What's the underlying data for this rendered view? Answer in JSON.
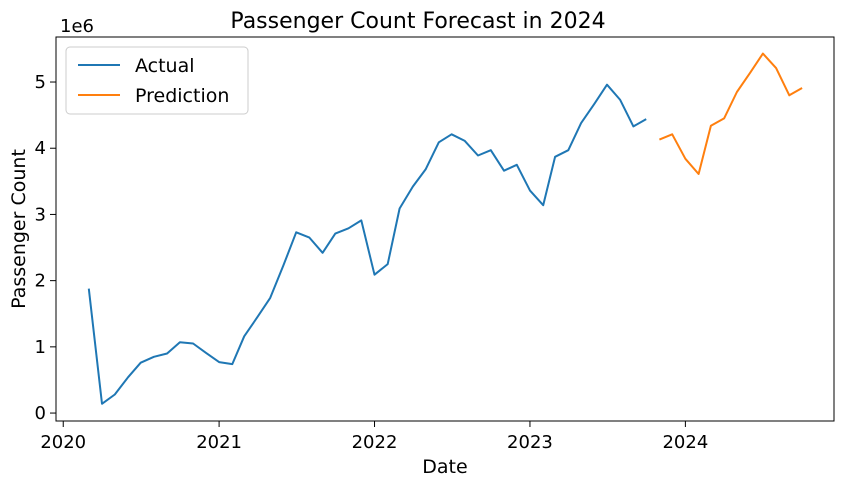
{
  "chart_data": {
    "type": "line",
    "title": "Passenger Count Forecast in 2024",
    "xlabel": "Date",
    "ylabel": "Passenger Count",
    "y_multiplier_label": "1e6",
    "xlim": [
      "2019-12-15",
      "2024-12-15"
    ],
    "ylim": [
      -0.12,
      5.68
    ],
    "x_ticks": [
      "2020",
      "2021",
      "2022",
      "2023",
      "2024"
    ],
    "y_ticks": [
      "0",
      "1",
      "2",
      "3",
      "4",
      "5"
    ],
    "legend": {
      "position": "top-left"
    },
    "grid": false,
    "series": [
      {
        "name": "Actual",
        "color": "#1f77b4",
        "points": [
          [
            "2020-03",
            1.88
          ],
          [
            "2020-04",
            0.14
          ],
          [
            "2020-05",
            0.28
          ],
          [
            "2020-06",
            0.54
          ],
          [
            "2020-07",
            0.76
          ],
          [
            "2020-08",
            0.85
          ],
          [
            "2020-09",
            0.9
          ],
          [
            "2020-10",
            1.07
          ],
          [
            "2020-11",
            1.05
          ],
          [
            "2020-12",
            0.91
          ],
          [
            "2021-01",
            0.77
          ],
          [
            "2021-02",
            0.74
          ],
          [
            "2021-03",
            1.16
          ],
          [
            "2021-04",
            1.45
          ],
          [
            "2021-05",
            1.74
          ],
          [
            "2021-06",
            2.23
          ],
          [
            "2021-07",
            2.73
          ],
          [
            "2021-08",
            2.65
          ],
          [
            "2021-09",
            2.42
          ],
          [
            "2021-10",
            2.71
          ],
          [
            "2021-11",
            2.79
          ],
          [
            "2021-12",
            2.91
          ],
          [
            "2022-01",
            2.09
          ],
          [
            "2022-02",
            2.25
          ],
          [
            "2022-03",
            3.09
          ],
          [
            "2022-04",
            3.42
          ],
          [
            "2022-05",
            3.68
          ],
          [
            "2022-06",
            4.09
          ],
          [
            "2022-07",
            4.21
          ],
          [
            "2022-08",
            4.11
          ],
          [
            "2022-09",
            3.89
          ],
          [
            "2022-10",
            3.97
          ],
          [
            "2022-11",
            3.66
          ],
          [
            "2022-12",
            3.75
          ],
          [
            "2023-01",
            3.36
          ],
          [
            "2023-02",
            3.14
          ],
          [
            "2023-03",
            3.87
          ],
          [
            "2023-04",
            3.97
          ],
          [
            "2023-05",
            4.38
          ],
          [
            "2023-06",
            4.67
          ],
          [
            "2023-07",
            4.96
          ],
          [
            "2023-08",
            4.73
          ],
          [
            "2023-09",
            4.33
          ],
          [
            "2023-10",
            4.44
          ]
        ]
      },
      {
        "name": "Prediction",
        "color": "#ff7f0e",
        "points": [
          [
            "2023-11",
            4.13
          ],
          [
            "2023-12",
            4.21
          ],
          [
            "2024-01",
            3.84
          ],
          [
            "2024-02",
            3.61
          ],
          [
            "2024-03",
            4.34
          ],
          [
            "2024-04",
            4.45
          ],
          [
            "2024-05",
            4.85
          ],
          [
            "2024-06",
            5.14
          ],
          [
            "2024-07",
            5.43
          ],
          [
            "2024-08",
            5.21
          ],
          [
            "2024-09",
            4.8
          ],
          [
            "2024-10",
            4.91
          ]
        ]
      }
    ]
  }
}
